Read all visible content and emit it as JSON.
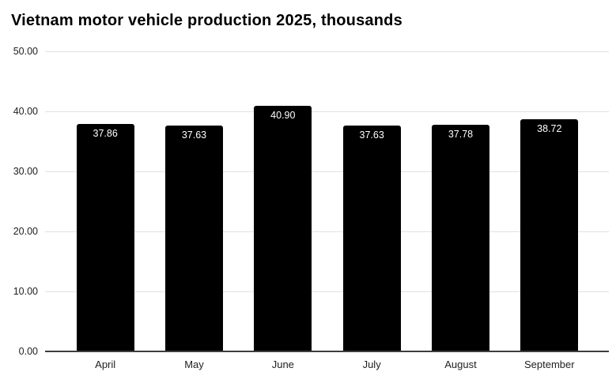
{
  "title": "Vietnam motor vehicle production 2025, thousands",
  "chart_data": {
    "type": "bar",
    "title": "Vietnam motor vehicle production 2025, thousands",
    "categories": [
      "April",
      "May",
      "June",
      "July",
      "August",
      "September"
    ],
    "values": [
      37.86,
      37.63,
      40.9,
      37.63,
      37.78,
      38.72
    ],
    "bar_labels": [
      "37.86",
      "37.63",
      "40.90",
      "37.63",
      "37.78",
      "38.72"
    ],
    "xlabel": "",
    "ylabel": "",
    "ylim": [
      0,
      50
    ],
    "yticks": [
      0,
      10,
      20,
      30,
      40,
      50
    ],
    "ytick_labels": [
      "0.00",
      "10.00",
      "20.00",
      "30.00",
      "40.00",
      "50.00"
    ],
    "grid": true,
    "legend": false,
    "bar_label_position": "inside-top",
    "colors": {
      "bar": "#000000",
      "bar_label_text": "#ffffff",
      "gridline": "#e2e2e2",
      "axis_line": "#3d3d3d",
      "tick_text": "#212121",
      "title_text": "#000000",
      "background": "#ffffff"
    }
  }
}
